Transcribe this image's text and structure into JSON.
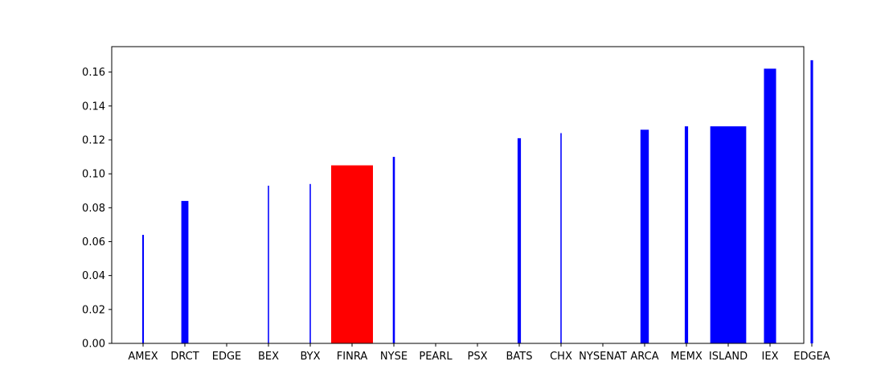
{
  "chart_data": {
    "type": "bar",
    "title": "",
    "xlabel": "",
    "ylabel": "",
    "ylim": [
      0,
      0.175
    ],
    "grid": false,
    "legend": "none",
    "yticks": [
      "0.00",
      "0.02",
      "0.04",
      "0.06",
      "0.08",
      "0.10",
      "0.12",
      "0.14",
      "0.16"
    ],
    "bars": [
      {
        "category": "AMEX",
        "value": 0.064,
        "weight": 0.04,
        "color": "#0000ff"
      },
      {
        "category": "DRCT",
        "value": 0.084,
        "weight": 0.17,
        "color": "#0000ff"
      },
      {
        "category": "EDGE",
        "value": 0.0,
        "weight": 0.0,
        "color": "#0000ff"
      },
      {
        "category": "BEX",
        "value": 0.093,
        "weight": 0.03,
        "color": "#0000ff"
      },
      {
        "category": "BYX",
        "value": 0.094,
        "weight": 0.03,
        "color": "#0000ff"
      },
      {
        "category": "FINRA",
        "value": 0.105,
        "weight": 1.0,
        "color": "#ff0000"
      },
      {
        "category": "NYSE",
        "value": 0.11,
        "weight": 0.05,
        "color": "#0000ff"
      },
      {
        "category": "PEARL",
        "value": 0.0,
        "weight": 0.0,
        "color": "#0000ff"
      },
      {
        "category": "PSX",
        "value": 0.0,
        "weight": 0.0,
        "color": "#0000ff"
      },
      {
        "category": "BATS",
        "value": 0.121,
        "weight": 0.08,
        "color": "#0000ff"
      },
      {
        "category": "CHX",
        "value": 0.124,
        "weight": 0.03,
        "color": "#0000ff"
      },
      {
        "category": "NYSENAT",
        "value": 0.0,
        "weight": 0.0,
        "color": "#0000ff"
      },
      {
        "category": "ARCA",
        "value": 0.126,
        "weight": 0.2,
        "color": "#0000ff"
      },
      {
        "category": "MEMX",
        "value": 0.128,
        "weight": 0.08,
        "color": "#0000ff"
      },
      {
        "category": "ISLAND",
        "value": 0.128,
        "weight": 0.86,
        "color": "#0000ff"
      },
      {
        "category": "IEX",
        "value": 0.162,
        "weight": 0.29,
        "color": "#0000ff"
      },
      {
        "category": "EDGEA",
        "value": 0.167,
        "weight": 0.06,
        "color": "#0000ff"
      }
    ]
  }
}
